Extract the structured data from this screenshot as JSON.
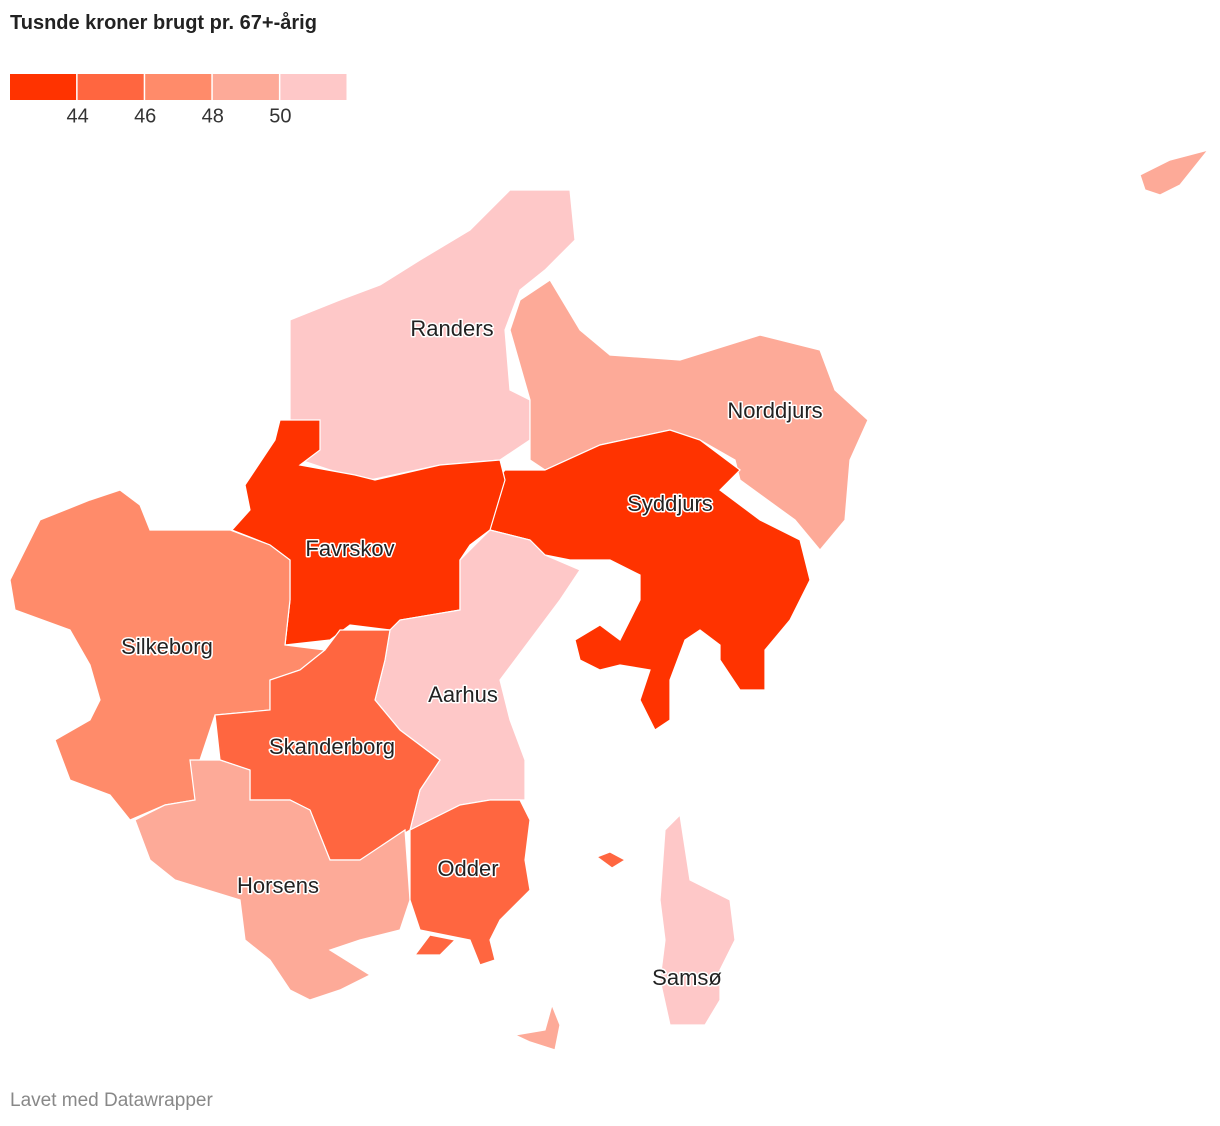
{
  "title": "Tusnde kroner brugt pr. 67+-årig",
  "legend": {
    "colors": [
      "#ff3300",
      "#ff6640",
      "#ff8b6a",
      "#fdaa98",
      "#fec8c8"
    ],
    "ticks": [
      44,
      46,
      48,
      50
    ]
  },
  "regions": [
    {
      "name": "Randers",
      "color": "#fec8c8"
    },
    {
      "name": "Norddjurs",
      "color": "#fdaa98"
    },
    {
      "name": "Syddjurs",
      "color": "#ff3300"
    },
    {
      "name": "Favrskov",
      "color": "#ff3300"
    },
    {
      "name": "Silkeborg",
      "color": "#ff8b6a"
    },
    {
      "name": "Aarhus",
      "color": "#fec8c8"
    },
    {
      "name": "Skanderborg",
      "color": "#ff6640"
    },
    {
      "name": "Horsens",
      "color": "#fdaa98"
    },
    {
      "name": "Odder",
      "color": "#ff6640"
    },
    {
      "name": "Samsø",
      "color": "#fec8c8"
    }
  ],
  "footer": "Lavet med Datawrapper"
}
